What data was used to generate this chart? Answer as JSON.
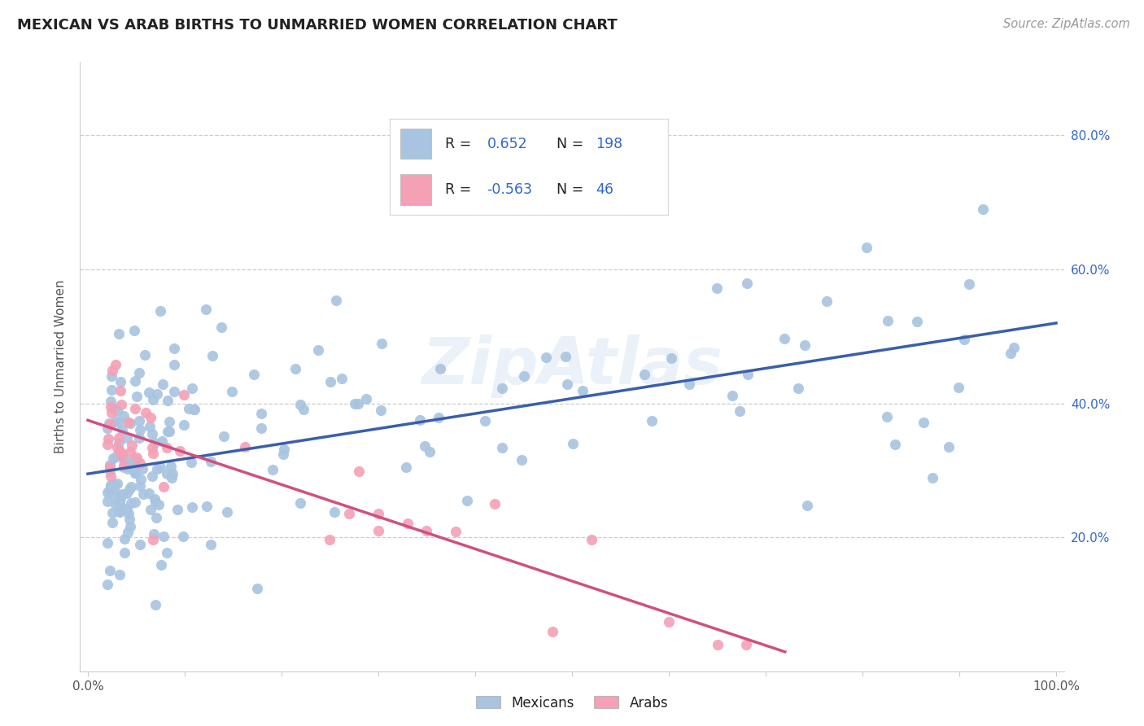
{
  "title": "MEXICAN VS ARAB BIRTHS TO UNMARRIED WOMEN CORRELATION CHART",
  "source": "Source: ZipAtlas.com",
  "ylabel": "Births to Unmarried Women",
  "mexican_color": "#a8c4e0",
  "mexican_edge_color": "#7aaed0",
  "arab_color": "#f4a0b5",
  "arab_edge_color": "#e07090",
  "mexican_line_color": "#3a5faa",
  "arab_line_color": "#d05080",
  "legend_R_mexican": "0.652",
  "legend_N_mexican": "198",
  "legend_R_arab": "-0.563",
  "legend_N_arab": "46",
  "watermark": "ZipAtlas",
  "blue_text": "#3366cc",
  "label_color": "#555555",
  "grid_color": "#cccccc",
  "title_color": "#222222",
  "source_color": "#999999"
}
